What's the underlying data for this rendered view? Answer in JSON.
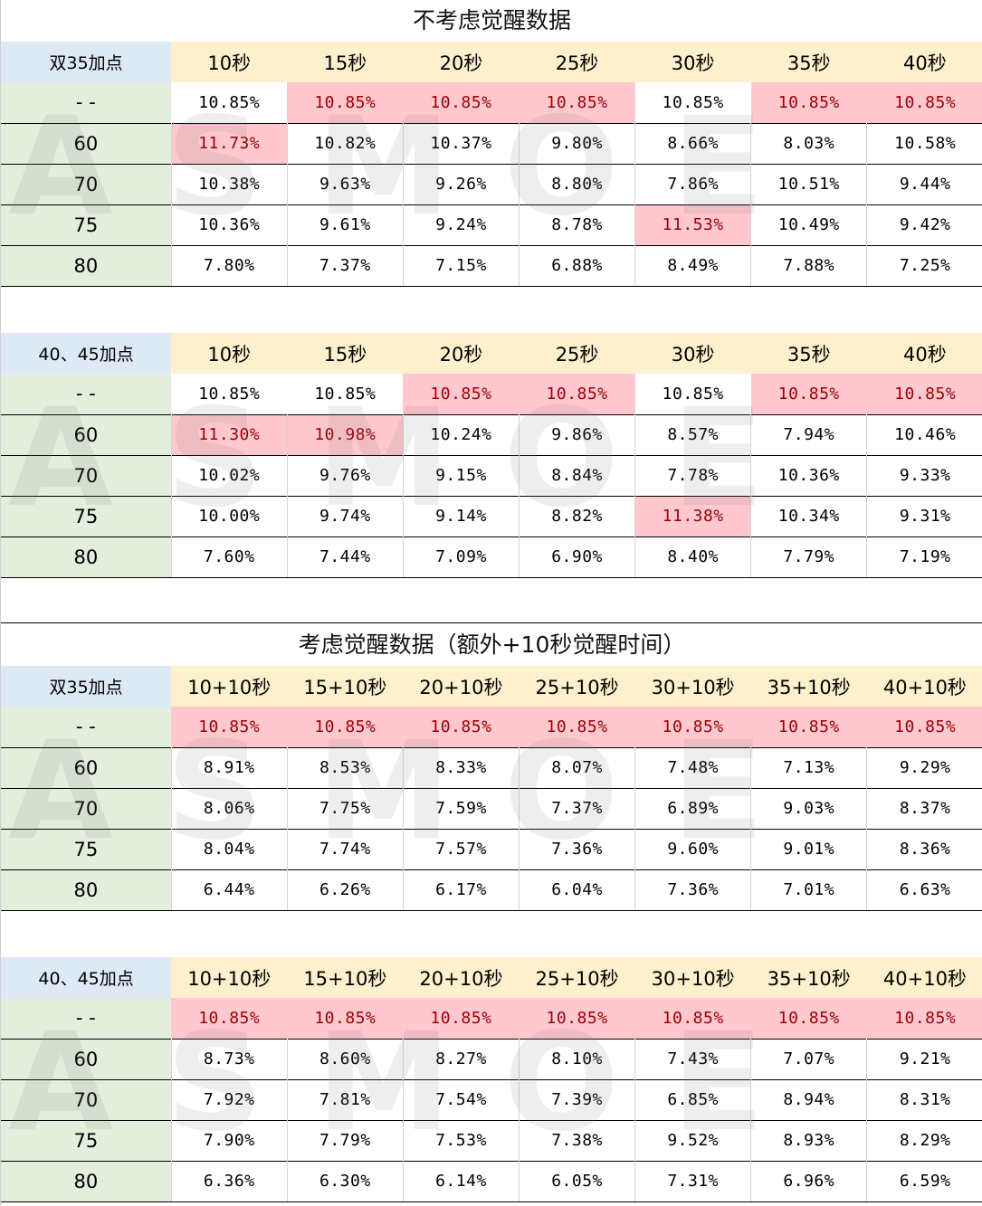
{
  "watermark": "ASMOE",
  "colors": {
    "highlight_bg": "#ffc7ce",
    "highlight_text": "#9c0006",
    "corner_bg": "#dde9f5",
    "colhead_bg": "#fdf0cd",
    "rowhead_bg": "#e3eedc"
  },
  "sections": [
    {
      "title": "不考虑觉醒数据",
      "tables": [
        {
          "corner": "双35加点",
          "columns": [
            "10秒",
            "15秒",
            "20秒",
            "25秒",
            "30秒",
            "35秒",
            "40秒"
          ],
          "rows": [
            {
              "label": "- -",
              "values": [
                "10.85%",
                "10.85%",
                "10.85%",
                "10.85%",
                "10.85%",
                "10.85%",
                "10.85%"
              ],
              "highlight": [
                false,
                true,
                true,
                true,
                false,
                true,
                true
              ]
            },
            {
              "label": "60",
              "values": [
                "11.73%",
                "10.82%",
                "10.37%",
                "9.80%",
                "8.66%",
                "8.03%",
                "10.58%"
              ],
              "highlight": [
                true,
                false,
                false,
                false,
                false,
                false,
                false
              ]
            },
            {
              "label": "70",
              "values": [
                "10.38%",
                "9.63%",
                "9.26%",
                "8.80%",
                "7.86%",
                "10.51%",
                "9.44%"
              ],
              "highlight": [
                false,
                false,
                false,
                false,
                false,
                false,
                false
              ]
            },
            {
              "label": "75",
              "values": [
                "10.36%",
                "9.61%",
                "9.24%",
                "8.78%",
                "11.53%",
                "10.49%",
                "9.42%"
              ],
              "highlight": [
                false,
                false,
                false,
                false,
                true,
                false,
                false
              ]
            },
            {
              "label": "80",
              "values": [
                "7.80%",
                "7.37%",
                "7.15%",
                "6.88%",
                "8.49%",
                "7.88%",
                "7.25%"
              ],
              "highlight": [
                false,
                false,
                false,
                false,
                false,
                false,
                false
              ]
            }
          ]
        },
        {
          "corner": "40、45加点",
          "columns": [
            "10秒",
            "15秒",
            "20秒",
            "25秒",
            "30秒",
            "35秒",
            "40秒"
          ],
          "rows": [
            {
              "label": "- -",
              "values": [
                "10.85%",
                "10.85%",
                "10.85%",
                "10.85%",
                "10.85%",
                "10.85%",
                "10.85%"
              ],
              "highlight": [
                false,
                false,
                true,
                true,
                false,
                true,
                true
              ]
            },
            {
              "label": "60",
              "values": [
                "11.30%",
                "10.98%",
                "10.24%",
                "9.86%",
                "8.57%",
                "7.94%",
                "10.46%"
              ],
              "highlight": [
                true,
                true,
                false,
                false,
                false,
                false,
                false
              ]
            },
            {
              "label": "70",
              "values": [
                "10.02%",
                "9.76%",
                "9.15%",
                "8.84%",
                "7.78%",
                "10.36%",
                "9.33%"
              ],
              "highlight": [
                false,
                false,
                false,
                false,
                false,
                false,
                false
              ]
            },
            {
              "label": "75",
              "values": [
                "10.00%",
                "9.74%",
                "9.14%",
                "8.82%",
                "11.38%",
                "10.34%",
                "9.31%"
              ],
              "highlight": [
                false,
                false,
                false,
                false,
                true,
                false,
                false
              ]
            },
            {
              "label": "80",
              "values": [
                "7.60%",
                "7.44%",
                "7.09%",
                "6.90%",
                "8.40%",
                "7.79%",
                "7.19%"
              ],
              "highlight": [
                false,
                false,
                false,
                false,
                false,
                false,
                false
              ]
            }
          ]
        }
      ]
    },
    {
      "title": "考虑觉醒数据（额外+10秒觉醒时间）",
      "tables": [
        {
          "corner": "双35加点",
          "columns": [
            "10+10秒",
            "15+10秒",
            "20+10秒",
            "25+10秒",
            "30+10秒",
            "35+10秒",
            "40+10秒"
          ],
          "rows": [
            {
              "label": "- -",
              "values": [
                "10.85%",
                "10.85%",
                "10.85%",
                "10.85%",
                "10.85%",
                "10.85%",
                "10.85%"
              ],
              "highlight": [
                true,
                true,
                true,
                true,
                true,
                true,
                true
              ]
            },
            {
              "label": "60",
              "values": [
                "8.91%",
                "8.53%",
                "8.33%",
                "8.07%",
                "7.48%",
                "7.13%",
                "9.29%"
              ],
              "highlight": [
                false,
                false,
                false,
                false,
                false,
                false,
                false
              ]
            },
            {
              "label": "70",
              "values": [
                "8.06%",
                "7.75%",
                "7.59%",
                "7.37%",
                "6.89%",
                "9.03%",
                "8.37%"
              ],
              "highlight": [
                false,
                false,
                false,
                false,
                false,
                false,
                false
              ]
            },
            {
              "label": "75",
              "values": [
                "8.04%",
                "7.74%",
                "7.57%",
                "7.36%",
                "9.60%",
                "9.01%",
                "8.36%"
              ],
              "highlight": [
                false,
                false,
                false,
                false,
                false,
                false,
                false
              ]
            },
            {
              "label": "80",
              "values": [
                "6.44%",
                "6.26%",
                "6.17%",
                "6.04%",
                "7.36%",
                "7.01%",
                "6.63%"
              ],
              "highlight": [
                false,
                false,
                false,
                false,
                false,
                false,
                false
              ]
            }
          ]
        },
        {
          "corner": "40、45加点",
          "columns": [
            "10+10秒",
            "15+10秒",
            "20+10秒",
            "25+10秒",
            "30+10秒",
            "35+10秒",
            "40+10秒"
          ],
          "rows": [
            {
              "label": "- -",
              "values": [
                "10.85%",
                "10.85%",
                "10.85%",
                "10.85%",
                "10.85%",
                "10.85%",
                "10.85%"
              ],
              "highlight": [
                true,
                true,
                true,
                true,
                true,
                true,
                true
              ]
            },
            {
              "label": "60",
              "values": [
                "8.73%",
                "8.60%",
                "8.27%",
                "8.10%",
                "7.43%",
                "7.07%",
                "9.21%"
              ],
              "highlight": [
                false,
                false,
                false,
                false,
                false,
                false,
                false
              ]
            },
            {
              "label": "70",
              "values": [
                "7.92%",
                "7.81%",
                "7.54%",
                "7.39%",
                "6.85%",
                "8.94%",
                "8.31%"
              ],
              "highlight": [
                false,
                false,
                false,
                false,
                false,
                false,
                false
              ]
            },
            {
              "label": "75",
              "values": [
                "7.90%",
                "7.79%",
                "7.53%",
                "7.38%",
                "9.52%",
                "8.93%",
                "8.29%"
              ],
              "highlight": [
                false,
                false,
                false,
                false,
                false,
                false,
                false
              ]
            },
            {
              "label": "80",
              "values": [
                "6.36%",
                "6.30%",
                "6.14%",
                "6.05%",
                "7.31%",
                "6.96%",
                "6.59%"
              ],
              "highlight": [
                false,
                false,
                false,
                false,
                false,
                false,
                false
              ]
            }
          ]
        }
      ]
    }
  ]
}
